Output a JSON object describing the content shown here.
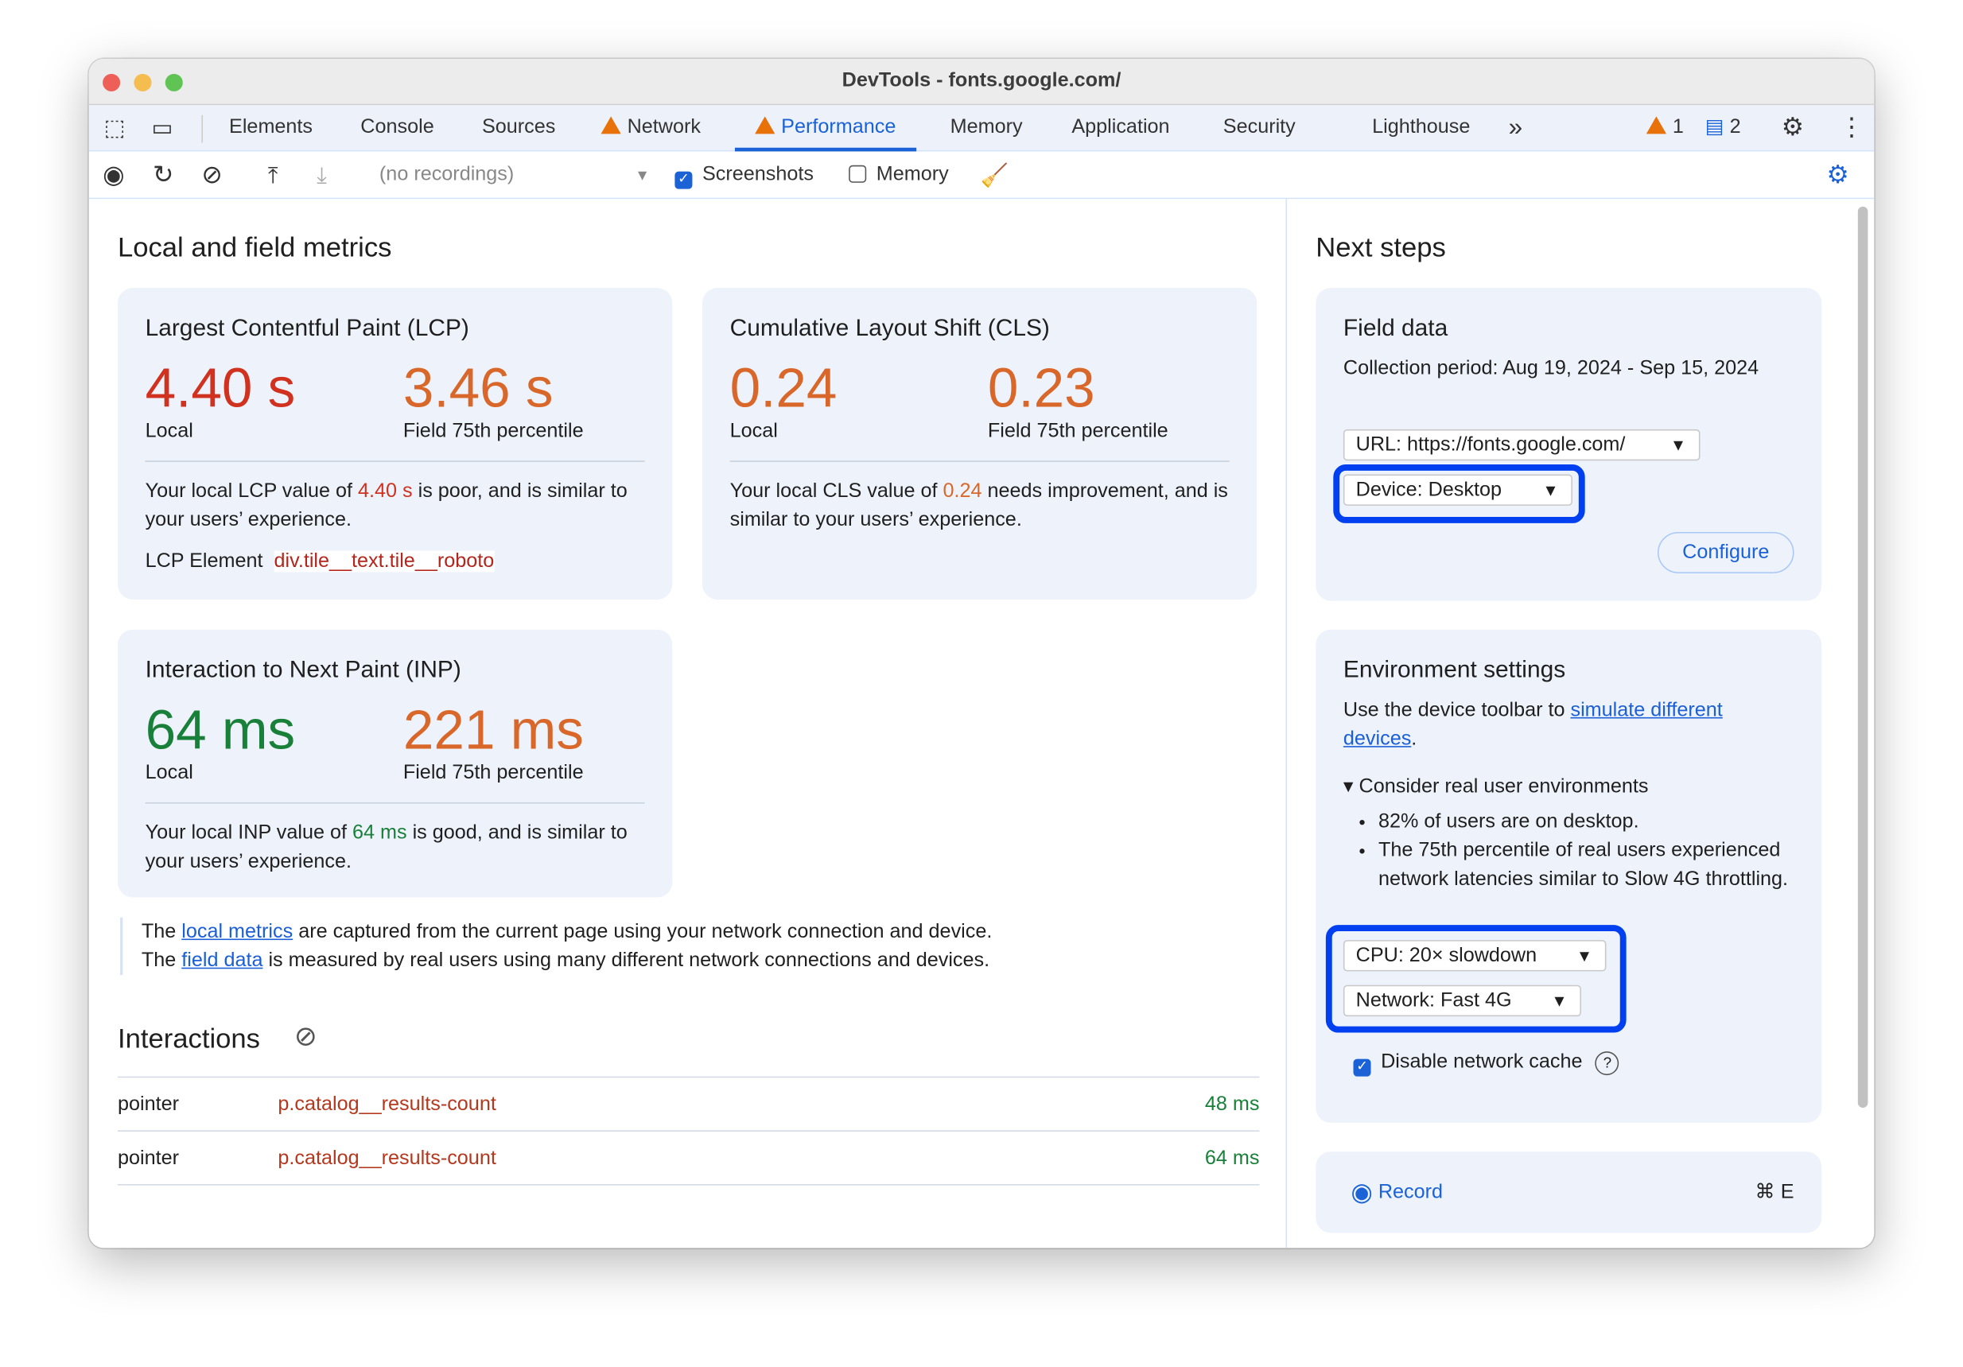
{
  "window": {
    "title": "DevTools - fonts.google.com/"
  },
  "tabs": [
    {
      "label": "Elements"
    },
    {
      "label": "Console"
    },
    {
      "label": "Sources"
    },
    {
      "label": "Network",
      "warning": true
    },
    {
      "label": "Performance",
      "warning": true,
      "active": true
    },
    {
      "label": "Memory"
    },
    {
      "label": "Application"
    },
    {
      "label": "Security"
    },
    {
      "label": "Lighthouse"
    }
  ],
  "tabbar": {
    "more": "»",
    "warnings": "1",
    "messages": "2"
  },
  "toolbar": {
    "recordings": "(no recordings)",
    "screenshots_label": "Screenshots",
    "screenshots_checked": true,
    "memory_label": "Memory",
    "memory_checked": false
  },
  "left": {
    "title": "Local and field metrics",
    "lcp": {
      "title": "Largest Contentful Paint (LCP)",
      "local": "4.40 s",
      "field": "3.46 s",
      "local_label": "Local",
      "field_label": "Field 75th percentile",
      "desc_pre": "Your local LCP value of ",
      "desc_value": "4.40 s",
      "desc_post": " is poor, and is similar to your users’ experience.",
      "element_label": "LCP Element",
      "element_value": "div.tile__text.tile__roboto"
    },
    "cls": {
      "title": "Cumulative Layout Shift (CLS)",
      "local": "0.24",
      "field": "0.23",
      "local_label": "Local",
      "field_label": "Field 75th percentile",
      "desc_pre": "Your local CLS value of ",
      "desc_value": "0.24",
      "desc_post": " needs improvement, and is similar to your users’ experience."
    },
    "inp": {
      "title": "Interaction to Next Paint (INP)",
      "local": "64 ms",
      "field": "221 ms",
      "local_label": "Local",
      "field_label": "Field 75th percentile",
      "desc_pre": "Your local INP value of ",
      "desc_value": "64 ms",
      "desc_post": " is good, and is similar to your users’ experience."
    },
    "note": {
      "l1_pre": "The ",
      "l1_link": "local metrics",
      "l1_post": " are captured from the current page using your network connection and device.",
      "l2_pre": "The ",
      "l2_link": "field data",
      "l2_post": " is measured by real users using many different network connections and devices."
    },
    "interactions": {
      "title": "Interactions",
      "rows": [
        {
          "type": "pointer",
          "selector": "p.catalog__results-count",
          "time": "48 ms"
        },
        {
          "type": "pointer",
          "selector": "p.catalog__results-count",
          "time": "64 ms"
        }
      ]
    }
  },
  "right": {
    "title": "Next steps",
    "field": {
      "title": "Field data",
      "period": "Collection period: Aug 19, 2024 - Sep 15, 2024",
      "url": "URL: https://fonts.google.com/",
      "device": "Device: Desktop",
      "configure": "Configure"
    },
    "env": {
      "title": "Environment settings",
      "text_pre": "Use the device toolbar to ",
      "text_link": "simulate different devices",
      "text_post": ".",
      "details": "Consider real user environments",
      "bullets": [
        "82% of users are on desktop.",
        "The 75th percentile of real users experienced network latencies similar to Slow 4G throttling."
      ],
      "cpu": "CPU: 20× slowdown",
      "network": "Network: Fast 4G",
      "cache_label": "Disable network cache",
      "cache_checked": true
    },
    "record": {
      "label": "Record",
      "shortcut": "⌘ E"
    }
  },
  "colors": {
    "poor": "#d0321f",
    "needs_improvement": "#d9672a",
    "good": "#188038",
    "accent": "#1a62d6",
    "highlight": "#0040f0"
  }
}
